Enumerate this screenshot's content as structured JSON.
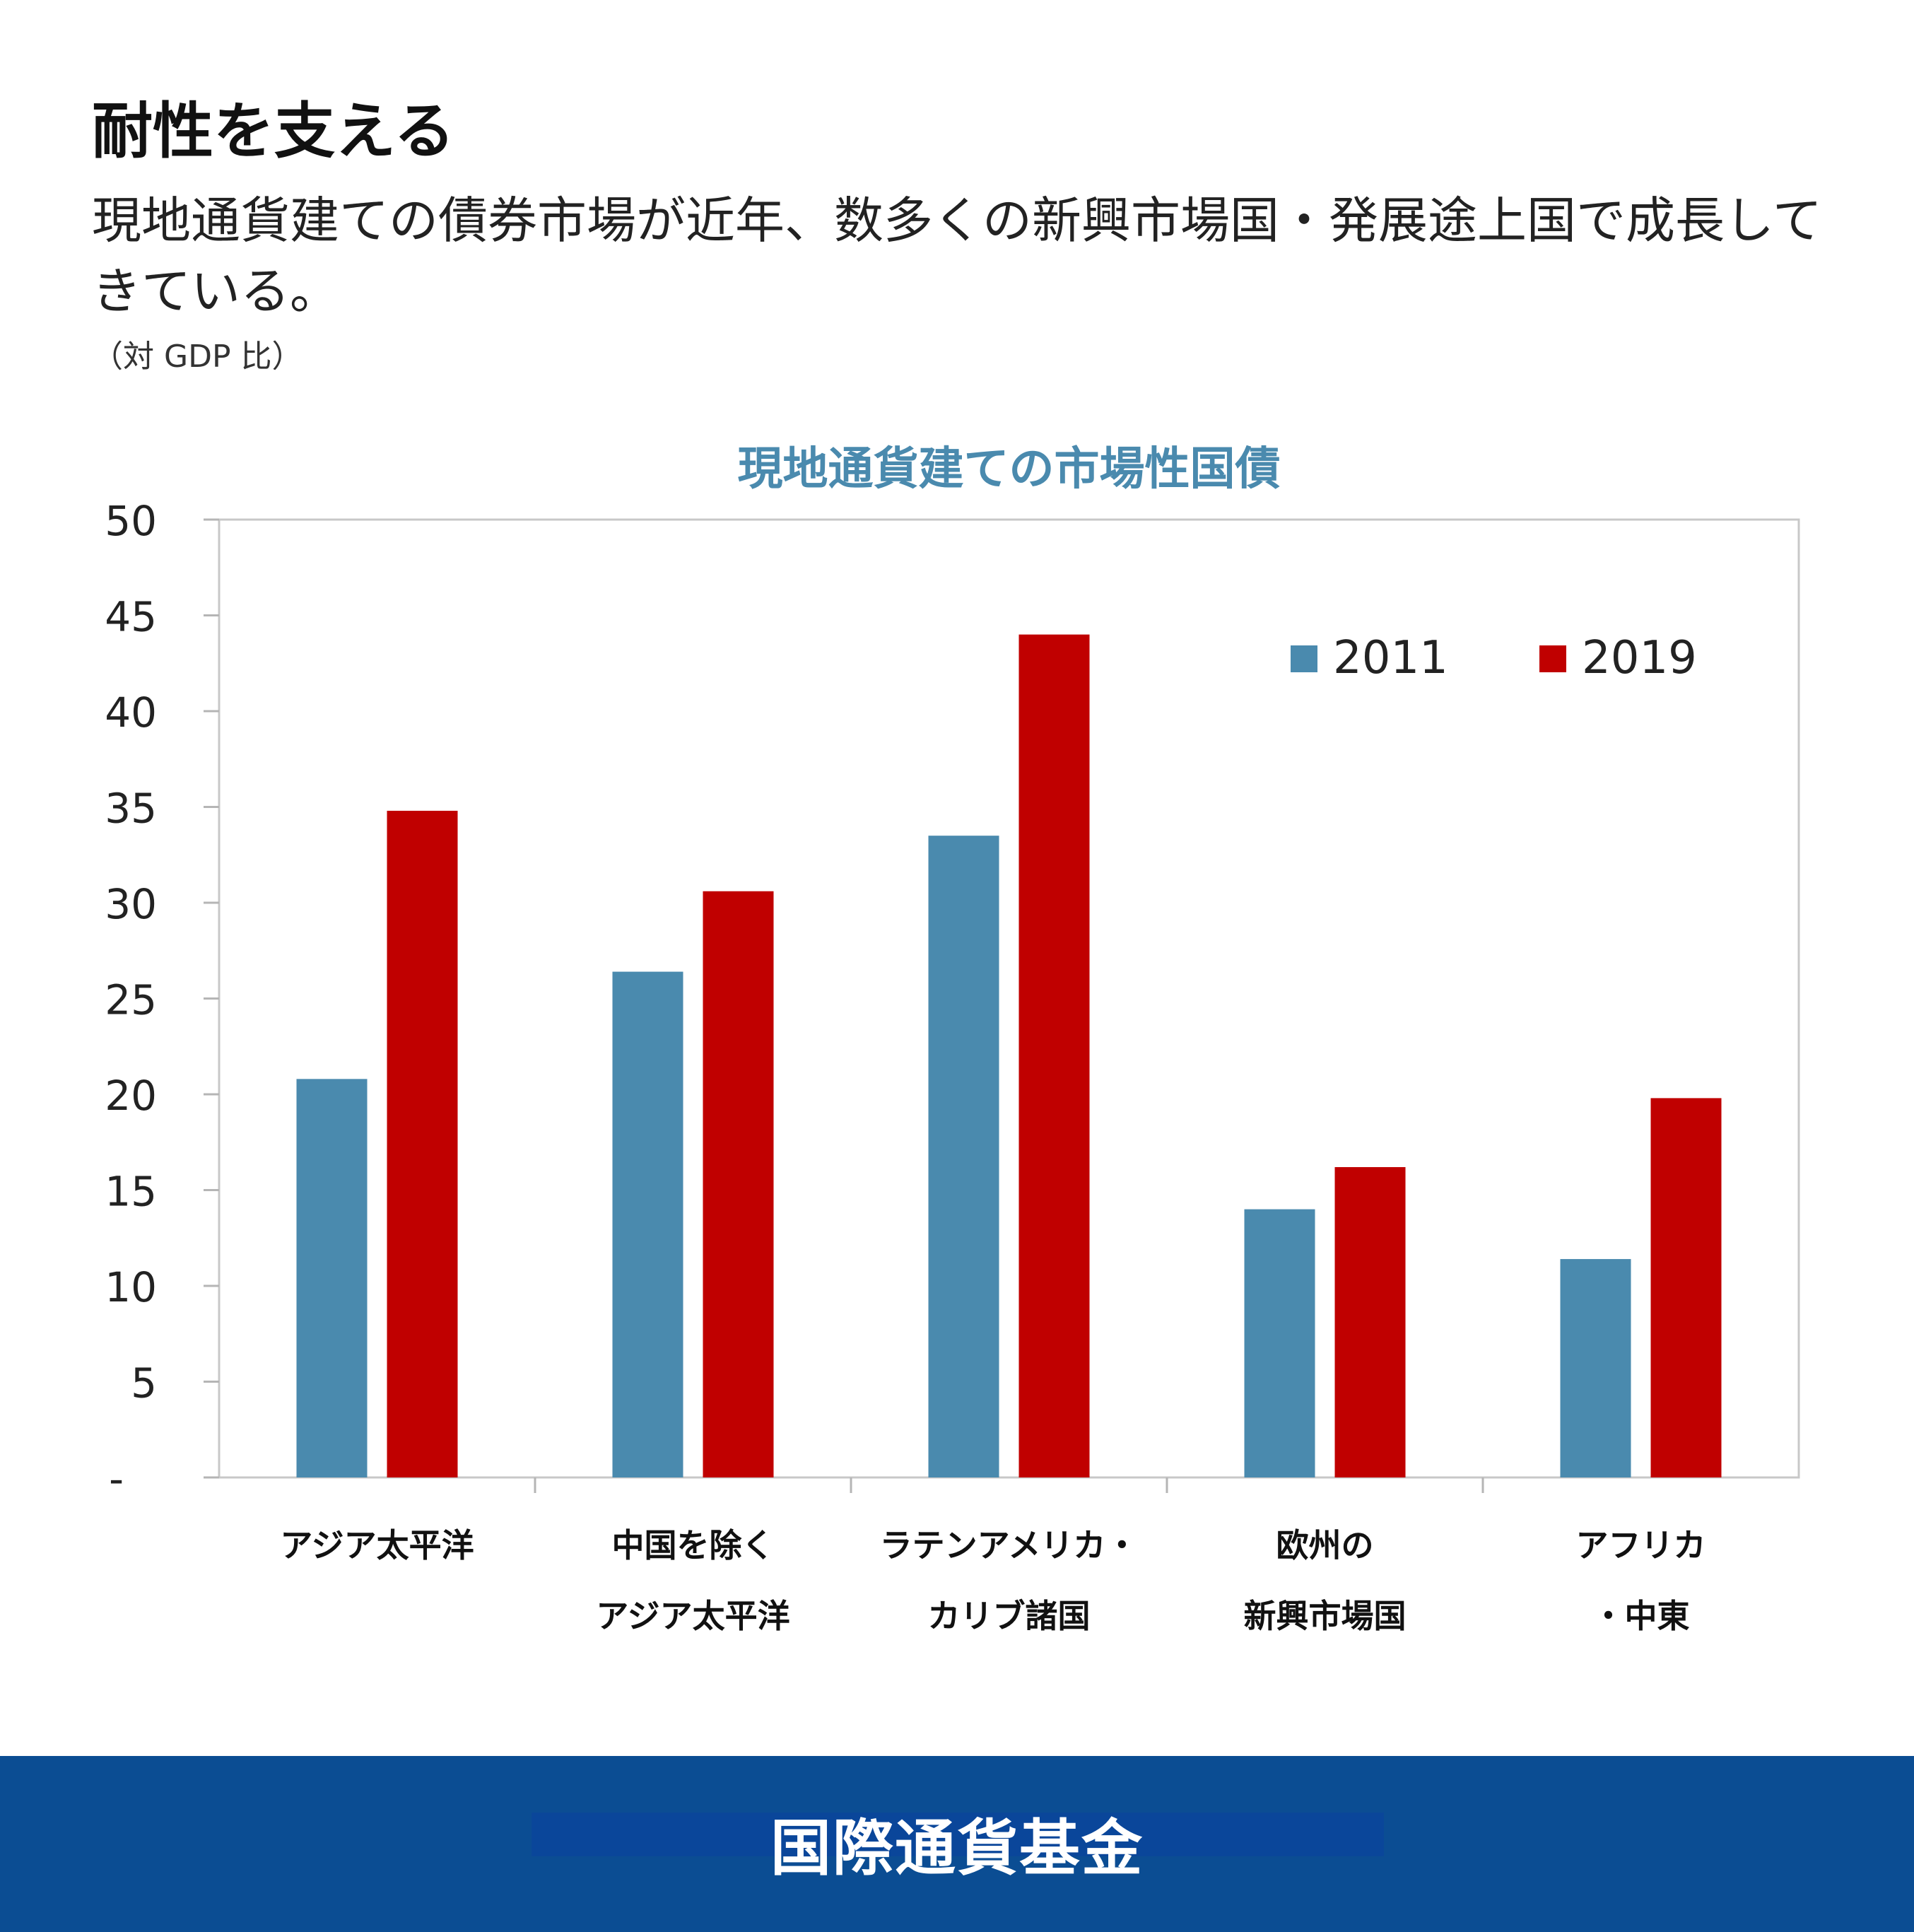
{
  "header": {
    "headline": "耐性を支える",
    "subtitle": "現地通貨建ての債券市場が近年、数多くの新興市場国・発展途上国で成長してきている。",
    "unit_note": "（対 GDP 比）"
  },
  "chart_data": {
    "type": "bar",
    "title": "現地通貨建ての市場性国債",
    "categories": [
      [
        "アジア太平洋"
      ],
      [
        "中国を除く",
        "アジア太平洋"
      ],
      [
        "ラテンアメリカ・",
        "カリブ諸国"
      ],
      [
        "欧州の",
        "新興市場国"
      ],
      [
        "アフリカ",
        "・中東"
      ]
    ],
    "series": [
      {
        "name": "2011",
        "color": "#4a8aae",
        "values": [
          20.8,
          26.4,
          33.5,
          14.0,
          11.4
        ]
      },
      {
        "name": "2019",
        "color": "#c00000",
        "values": [
          34.8,
          30.6,
          44.0,
          16.2,
          19.8
        ]
      }
    ],
    "ylim": [
      0,
      50
    ],
    "yticks": [
      {
        "value": 0,
        "label": "-"
      },
      {
        "value": 5,
        "label": "5"
      },
      {
        "value": 10,
        "label": "10"
      },
      {
        "value": 15,
        "label": "15"
      },
      {
        "value": 20,
        "label": "20"
      },
      {
        "value": 25,
        "label": "25"
      },
      {
        "value": 30,
        "label": "30"
      },
      {
        "value": 35,
        "label": "35"
      },
      {
        "value": 40,
        "label": "40"
      },
      {
        "value": 45,
        "label": "45"
      },
      {
        "value": 50,
        "label": "50"
      }
    ],
    "legend_position": "top-right",
    "title_color": "#4a8aae",
    "grid": false
  },
  "footer": {
    "organization": "国際通貨基金",
    "background_color": "#0b4d93"
  }
}
